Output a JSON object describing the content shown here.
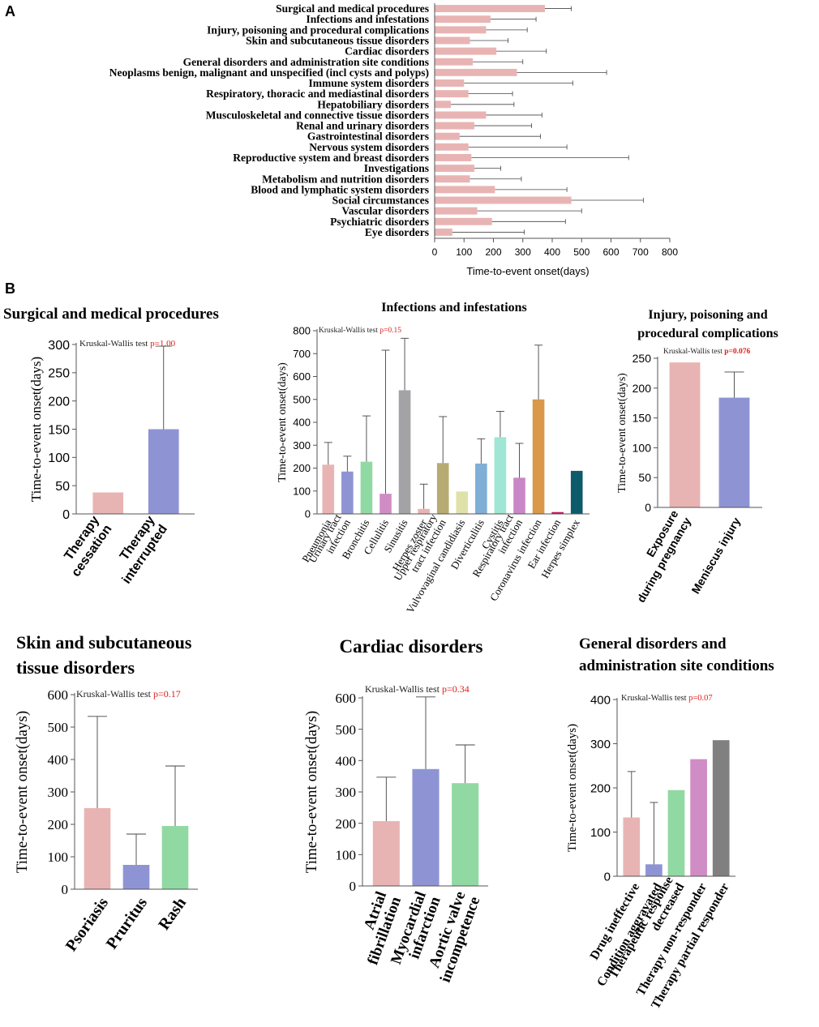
{
  "panel_labels": {
    "a": "A",
    "b": "B"
  },
  "stat_prefix": "Kruskal-Wallis test",
  "chart_data": [
    {
      "id": "A",
      "type": "bar",
      "orientation": "horizontal",
      "title": "",
      "xlabel": "Time-to-event onset(days)",
      "xlim": [
        0,
        800
      ],
      "xticks": [
        0,
        100,
        200,
        300,
        400,
        500,
        600,
        700,
        800
      ],
      "color": "#e8b4b3",
      "categories": [
        "Surgical and medical procedures",
        "Infections and infestations",
        "Injury, poisoning and procedural complications",
        "Skin and subcutaneous tissue disorders",
        "Cardiac disorders",
        "General disorders and administration site conditions",
        "Neoplasms benign, malignant and unspecified (incl cysts and polyps)",
        "Immune system disorders",
        "Respiratory, thoracic and mediastinal disorders",
        "Hepatobiliary disorders",
        "Musculoskeletal and connective tissue disorders",
        "Renal and urinary disorders",
        "Gastrointestinal disorders",
        "Nervous system disorders",
        "Reproductive system and breast disorders",
        "Investigations",
        "Metabolism and nutrition disorders",
        "Blood and lymphatic system disorders",
        "Social circumstances",
        "Vascular disorders",
        "Psychiatric disorders",
        "Eye disorders"
      ],
      "values": [
        375,
        190,
        175,
        120,
        210,
        130,
        280,
        100,
        115,
        55,
        175,
        135,
        85,
        115,
        125,
        135,
        120,
        205,
        465,
        145,
        195,
        60
      ],
      "errors": [
        465,
        345,
        315,
        250,
        380,
        300,
        585,
        470,
        265,
        270,
        365,
        330,
        360,
        450,
        660,
        225,
        295,
        450,
        710,
        500,
        445,
        305
      ]
    },
    {
      "id": "B1",
      "type": "bar",
      "title_lines": [
        "Surgical and medical procedures"
      ],
      "ylabel": "Time-to-event onset(days)",
      "ylim": [
        0,
        300
      ],
      "yticks": [
        0,
        50,
        100,
        150,
        200,
        250,
        300
      ],
      "stat_p": "p=1.00",
      "categories": [
        [
          "Therapy",
          "cessation"
        ],
        [
          "Therapy",
          "interrupted"
        ]
      ],
      "values": [
        38,
        150
      ],
      "errors": [
        null,
        297
      ],
      "colors": [
        "#e8b4b3",
        "#8e94d3"
      ]
    },
    {
      "id": "B2",
      "type": "bar",
      "title_lines": [
        "Infections and infestations"
      ],
      "ylabel": "Time-to-event onset(days)",
      "ylim": [
        0,
        800
      ],
      "yticks": [
        0,
        100,
        200,
        300,
        400,
        500,
        600,
        700,
        800
      ],
      "stat_p": "p=0.15",
      "categories": [
        [
          "Pneumonia"
        ],
        [
          "Urinary tract",
          "infection"
        ],
        [
          "Bronchitis"
        ],
        [
          "Cellulitis"
        ],
        [
          "Sinusitis"
        ],
        [
          "Herpes zoster"
        ],
        [
          "Upper respiratory",
          "tract infection"
        ],
        [
          "Vulvovaginal candidiasis"
        ],
        [
          "Diverticulitis"
        ],
        [
          "Cystitis"
        ],
        [
          "Respiratory tract",
          "infection"
        ],
        [
          "Coronavirus infection"
        ],
        [
          "Ear infection"
        ],
        [
          "Herpes simplex"
        ]
      ],
      "values": [
        215,
        185,
        228,
        88,
        540,
        22,
        222,
        98,
        220,
        335,
        158,
        500,
        8,
        188
      ],
      "errors": [
        312,
        252,
        428,
        715,
        767,
        130,
        425,
        null,
        328,
        448,
        308,
        737,
        null,
        null
      ],
      "colors": [
        "#e8b4b3",
        "#8e94d3",
        "#91d9a2",
        "#d08cc5",
        "#a3a3a6",
        "#e8b4b3",
        "#b8ab72",
        "#dfe2a8",
        "#7faed6",
        "#9fe6d4",
        "#c987c7",
        "#d9984a",
        "#c2185b",
        "#0d5a6b"
      ]
    },
    {
      "id": "B3",
      "type": "bar",
      "title_lines": [
        "Injury, poisoning and",
        "procedural complications"
      ],
      "ylabel": "Time-to-event onset(days)",
      "ylim": [
        0,
        250
      ],
      "yticks": [
        0,
        50,
        100,
        150,
        200,
        250
      ],
      "stat_p": "p=0.076",
      "categories": [
        [
          "Exposure",
          "during pregnancy"
        ],
        [
          "Meniscus injury"
        ]
      ],
      "values": [
        243,
        184
      ],
      "errors": [
        null,
        227
      ],
      "colors": [
        "#e8b4b3",
        "#8e94d3"
      ]
    },
    {
      "id": "B4",
      "type": "bar",
      "title_lines": [
        "Skin and subcutaneous",
        "tissue disorders"
      ],
      "ylabel": "Time-to-event onset(days)",
      "ylim": [
        0,
        600
      ],
      "yticks": [
        0,
        100,
        200,
        300,
        400,
        500,
        600
      ],
      "stat_p": "p=0.17",
      "categories": [
        [
          "Psoriasis"
        ],
        [
          "Pruritus"
        ],
        [
          "Rash"
        ]
      ],
      "values": [
        250,
        75,
        195
      ],
      "errors": [
        533,
        170,
        380
      ],
      "colors": [
        "#e8b4b3",
        "#8e94d3",
        "#91d9a2"
      ]
    },
    {
      "id": "B5",
      "type": "bar",
      "title_lines": [
        "Cardiac disorders"
      ],
      "ylabel": "Time-to-event onset(days)",
      "ylim": [
        0,
        600
      ],
      "yticks": [
        0,
        100,
        200,
        300,
        400,
        500,
        600
      ],
      "stat_p": "p=0.34",
      "categories": [
        [
          "Atrial",
          "fibrillation"
        ],
        [
          "Myocardial",
          "infarction"
        ],
        [
          "Aortic valve",
          "incompetence"
        ]
      ],
      "values": [
        207,
        373,
        328
      ],
      "errors": [
        347,
        603,
        450
      ],
      "colors": [
        "#e8b4b3",
        "#8e94d3",
        "#91d9a2"
      ]
    },
    {
      "id": "B6",
      "type": "bar",
      "title_lines": [
        "General disorders and",
        "administration site conditions"
      ],
      "ylabel": "Time-to-event onset(days)",
      "ylim": [
        0,
        400
      ],
      "yticks": [
        0,
        100,
        200,
        300,
        400
      ],
      "stat_p": "p=0.07",
      "categories": [
        [
          "Drug ineffective"
        ],
        [
          "Condition aggravated"
        ],
        [
          "Therapeutic response",
          "decreased"
        ],
        [
          "Therapy non-responder"
        ],
        [
          "Therapy partial responder"
        ]
      ],
      "values": [
        133,
        27,
        195,
        265,
        308
      ],
      "errors": [
        237,
        167,
        null,
        null,
        null
      ],
      "colors": [
        "#e8b4b3",
        "#8e94d3",
        "#91d9a2",
        "#d08cc5",
        "#808080"
      ]
    }
  ]
}
